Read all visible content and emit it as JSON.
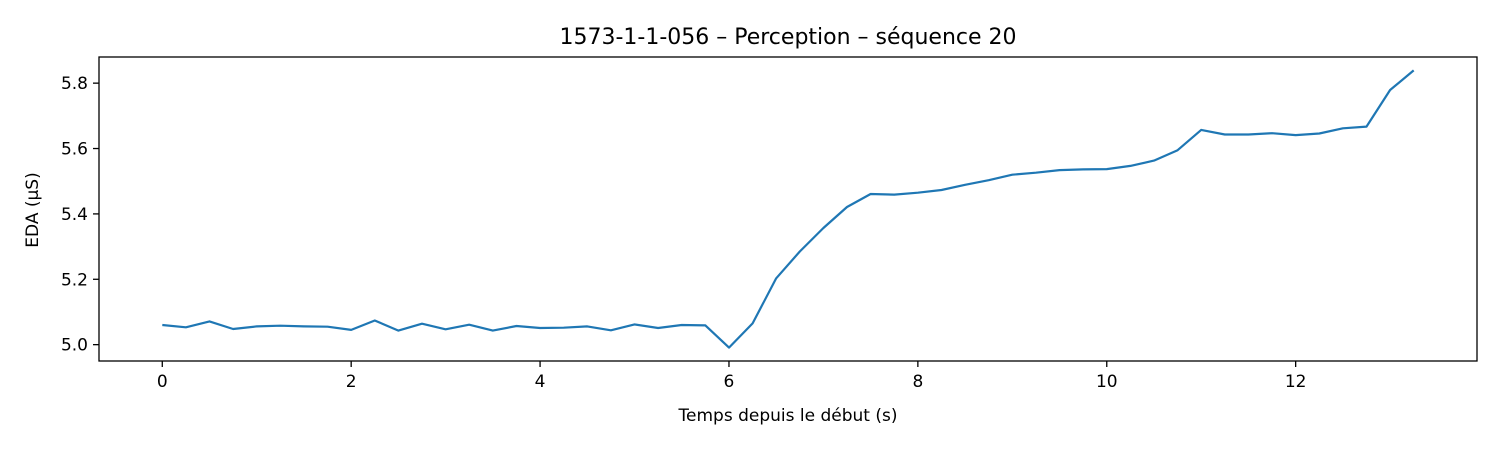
{
  "chart_data": {
    "type": "line",
    "title": "1573-1-1-056 – Perception – séquence 20",
    "xlabel": "Temps depuis le début (s)",
    "ylabel": "EDA (µS)",
    "xlim": [
      -0.67,
      13.92
    ],
    "ylim": [
      4.95,
      5.88
    ],
    "xticks": [
      0,
      2,
      4,
      6,
      8,
      10,
      12
    ],
    "yticks": [
      5.0,
      5.2,
      5.4,
      5.6,
      5.8
    ],
    "line_color": "#1f77b4",
    "series": [
      {
        "name": "EDA",
        "x": [
          0,
          0.25,
          0.5,
          0.75,
          1.0,
          1.25,
          1.5,
          1.75,
          2.0,
          2.25,
          2.5,
          2.75,
          3.0,
          3.25,
          3.5,
          3.75,
          4.0,
          4.25,
          4.5,
          4.75,
          5.0,
          5.25,
          5.5,
          5.75,
          6.0,
          6.25,
          6.5,
          6.75,
          7.0,
          7.25,
          7.5,
          7.75,
          8.0,
          8.25,
          8.5,
          8.75,
          9.0,
          9.25,
          9.5,
          9.75,
          10.0,
          10.25,
          10.5,
          10.75,
          11.0,
          11.25,
          11.5,
          11.75,
          12.0,
          12.25,
          12.5,
          12.75,
          13.0,
          13.25
        ],
        "values": [
          5.06,
          5.053,
          5.071,
          5.048,
          5.056,
          5.058,
          5.056,
          5.055,
          5.045,
          5.074,
          5.043,
          5.064,
          5.047,
          5.061,
          5.043,
          5.057,
          5.051,
          5.052,
          5.056,
          5.044,
          5.062,
          5.051,
          5.06,
          5.059,
          4.991,
          5.065,
          5.203,
          5.285,
          5.357,
          5.421,
          5.461,
          5.459,
          5.465,
          5.473,
          5.489,
          5.503,
          5.52,
          5.526,
          5.534,
          5.536,
          5.537,
          5.547,
          5.563,
          5.595,
          5.657,
          5.643,
          5.643,
          5.647,
          5.641,
          5.646,
          5.662,
          5.667,
          5.779,
          5.839
        ]
      }
    ]
  }
}
